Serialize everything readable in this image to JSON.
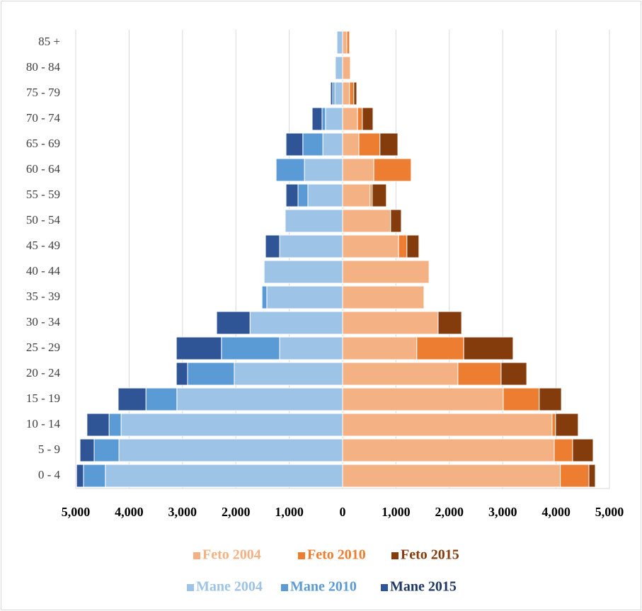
{
  "chart_data": {
    "type": "pyramid",
    "categories": [
      "0 - 4",
      "5 - 9",
      "10 - 14",
      "15 - 19",
      "20 - 24",
      "25 - 29",
      "30 - 34",
      "35 - 39",
      "40 - 44",
      "45 - 49",
      "50 - 54",
      "55 - 59",
      "60 - 64",
      "65 - 69",
      "70 - 74",
      "75 - 79",
      "80 - 84",
      "85 +"
    ],
    "series": [
      {
        "name": "Feto 2004",
        "color": "#f4b183",
        "side": "right",
        "values": [
          4080,
          3965,
          3925,
          3010,
          2160,
          1390,
          1790,
          1525,
          1620,
          1050,
          900,
          515,
          585,
          305,
          280,
          130,
          145,
          80
        ]
      },
      {
        "name": "Feto 2010",
        "color": "#ed7d31",
        "side": "right",
        "values": [
          535,
          345,
          65,
          675,
          810,
          880,
          0,
          0,
          0,
          155,
          0,
          40,
          700,
          395,
          90,
          80,
          0,
          50
        ]
      },
      {
        "name": "Feto 2015",
        "color": "#843c0c",
        "side": "right",
        "values": [
          120,
          385,
          425,
          415,
          480,
          925,
          440,
          0,
          0,
          225,
          200,
          265,
          0,
          335,
          200,
          55,
          0,
          0
        ]
      },
      {
        "name": "Mane 2004",
        "color": "#9dc3e6",
        "side": "left",
        "values": [
          4445,
          4190,
          4150,
          3105,
          2030,
          1180,
          1735,
          1420,
          1470,
          1180,
          1075,
          650,
          715,
          370,
          320,
          145,
          135,
          105
        ]
      },
      {
        "name": "Mane 2010",
        "color": "#5b9bd5",
        "side": "left",
        "values": [
          410,
          465,
          225,
          580,
          875,
          1090,
          0,
          90,
          0,
          0,
          0,
          185,
          530,
          375,
          65,
          40,
          0,
          0
        ]
      },
      {
        "name": "Mane 2015",
        "color": "#2f5597",
        "side": "left",
        "values": [
          130,
          265,
          415,
          520,
          210,
          845,
          625,
          0,
          0,
          265,
          0,
          225,
          0,
          315,
          185,
          40,
          0,
          0
        ]
      }
    ],
    "xlim": [
      -5000,
      5000
    ],
    "xticks": [
      {
        "value": -5000,
        "label": "5,000"
      },
      {
        "value": -4000,
        "label": "4,000"
      },
      {
        "value": -3000,
        "label": "3,000"
      },
      {
        "value": -2000,
        "label": "2,000"
      },
      {
        "value": -1000,
        "label": "1,000"
      },
      0,
      {
        "value": 1000,
        "label": "1,000"
      },
      {
        "value": 2000,
        "label": "2,000"
      },
      {
        "value": 3000,
        "label": "3,000"
      },
      {
        "value": 4000,
        "label": "4,000"
      },
      {
        "value": 5000,
        "label": "5,000"
      }
    ],
    "grid": true
  }
}
